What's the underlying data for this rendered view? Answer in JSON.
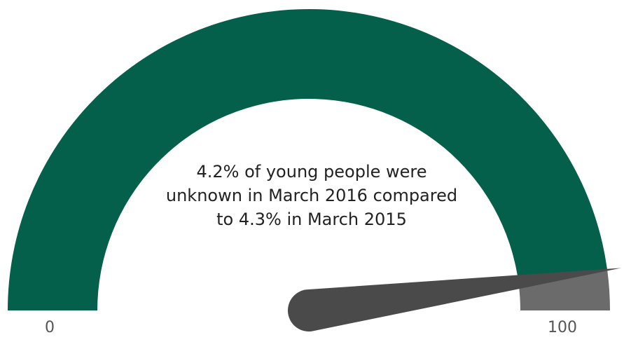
{
  "chart_data": {
    "type": "gauge",
    "min": 0,
    "max": 100,
    "value": 95.8,
    "needle_value": 95.7,
    "annotation_lines": [
      "4.2% of young people were",
      "unknown in March 2016 compared",
      "to 4.3% in March 2015"
    ],
    "tick_labels": {
      "min": "0",
      "max": "100"
    },
    "colors": {
      "filled": "#04604a",
      "remaining": "#6b6b6b",
      "needle": "#4a4a4a"
    }
  }
}
